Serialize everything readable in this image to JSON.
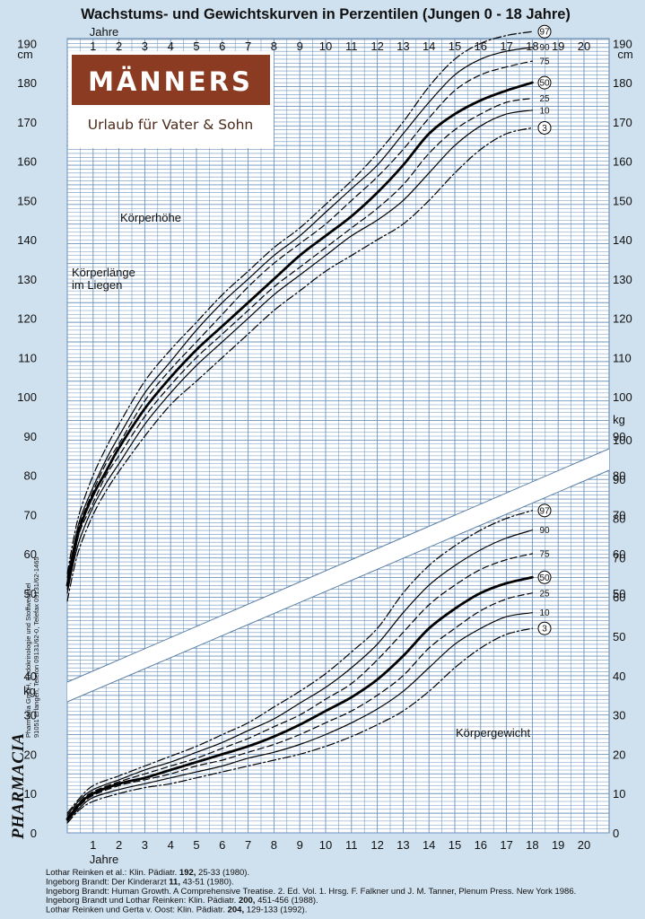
{
  "title": "Wachstums- und Gewichtskurven in Perzentilen (Jungen 0 - 18 Jahre)",
  "axes": {
    "age_label": "Jahre",
    "age_ticks": [
      "1",
      "2",
      "3",
      "4",
      "5",
      "6",
      "7",
      "8",
      "9",
      "10",
      "11",
      "12",
      "13",
      "14",
      "15",
      "16",
      "17",
      "18",
      "19",
      "20"
    ],
    "height_unit": "cm",
    "height_ticks": [
      "50",
      "60",
      "70",
      "80",
      "90",
      "100",
      "110",
      "120",
      "130",
      "140",
      "150",
      "160",
      "170",
      "180",
      "190"
    ],
    "weight_unit": "kg",
    "weight_ticks": [
      "0",
      "10",
      "20",
      "30",
      "40",
      "50",
      "60",
      "70",
      "80",
      "90",
      "100"
    ],
    "lower_left_ticks": [
      "0",
      "10",
      "20",
      "30",
      "40"
    ]
  },
  "labels": {
    "height": "Körperhöhe",
    "length_line1": "Körperlänge",
    "length_line2": "im Liegen",
    "weight": "Körpergewicht"
  },
  "logo": {
    "name": "MÄNNERS",
    "subtitle": "Urlaub für Vater & Sohn"
  },
  "sidebar": {
    "brand": "PHARMACIA",
    "line1": "Pharmacia GmbH, Endokrinologie und Stoffwechsel",
    "line2": "91051 Erlangen, Telefon 09131/62-0, Telefax 09131/62-1465"
  },
  "references": [
    {
      "pre": "Lothar Reinken et al.: Klin. Pädiatr. ",
      "bold": "192,",
      "post": " 25-33 (1980)."
    },
    {
      "pre": "Ingeborg Brandt: Der Kinderarzt ",
      "bold": "11,",
      "post": " 43-51 (1980)."
    },
    {
      "pre": "Ingeborg Brandt: Human Growth. A Comprehensive Treatise. 2. Ed. Vol. 1. Hrsg. F. Falkner und J. M. Tanner, Plenum Press. New York 1986.",
      "bold": "",
      "post": ""
    },
    {
      "pre": "Ingeborg Brandt und Lothar Reinken: Klin. Pädiatr. ",
      "bold": "200,",
      "post": " 451-456 (1988)."
    },
    {
      "pre": "Lothar Reinken und Gerta v. Oost: Klin. Pädiatr. ",
      "bold": "204,",
      "post": " 129-133 (1992)."
    }
  ],
  "chart_data": [
    {
      "type": "line",
      "title": "Körperhöhe",
      "xlabel": "Jahre",
      "ylabel": "cm",
      "xlim": [
        0,
        20
      ],
      "ylim": [
        50,
        190
      ],
      "grid": true,
      "series": [
        {
          "name": "97",
          "style": "dashdot",
          "x": [
            0,
            0.25,
            0.5,
            1,
            1.5,
            2,
            3,
            4,
            5,
            6,
            7,
            8,
            9,
            10,
            11,
            12,
            13,
            14,
            15,
            16,
            17,
            18
          ],
          "values": [
            55,
            64,
            71,
            80,
            87,
            93,
            104,
            112,
            119,
            126,
            132,
            138,
            143,
            149,
            155,
            162,
            170,
            179,
            186,
            190,
            192,
            193
          ]
        },
        {
          "name": "90",
          "style": "solid",
          "x": [
            0,
            0.25,
            0.5,
            1,
            1.5,
            2,
            3,
            4,
            5,
            6,
            7,
            8,
            9,
            10,
            11,
            12,
            13,
            14,
            15,
            16,
            17,
            18
          ],
          "values": [
            54,
            62,
            69,
            77,
            84,
            90,
            101,
            109,
            117,
            124,
            130,
            136,
            141,
            147,
            153,
            159,
            167,
            175,
            182,
            186,
            188,
            189
          ]
        },
        {
          "name": "75",
          "style": "dashed",
          "x": [
            0,
            0.25,
            0.5,
            1,
            1.5,
            2,
            3,
            4,
            5,
            6,
            7,
            8,
            9,
            10,
            11,
            12,
            13,
            14,
            15,
            16,
            17,
            18
          ],
          "values": [
            53,
            61,
            68,
            76,
            83,
            88,
            99,
            107,
            114,
            121,
            128,
            134,
            139,
            144,
            150,
            156,
            163,
            171,
            178,
            182,
            184,
            185.5
          ]
        },
        {
          "name": "50",
          "style": "bold",
          "x": [
            0,
            0.25,
            0.5,
            1,
            1.5,
            2,
            3,
            4,
            5,
            6,
            7,
            8,
            9,
            10,
            11,
            12,
            13,
            14,
            15,
            16,
            17,
            18
          ],
          "values": [
            52,
            60,
            67,
            75,
            81,
            87,
            97,
            105,
            112,
            118,
            124,
            130,
            136,
            141,
            146,
            152,
            159,
            167,
            172,
            175.5,
            178,
            180
          ]
        },
        {
          "name": "25",
          "style": "dashed",
          "x": [
            0,
            0.25,
            0.5,
            1,
            1.5,
            2,
            3,
            4,
            5,
            6,
            7,
            8,
            9,
            10,
            11,
            12,
            13,
            14,
            15,
            16,
            17,
            18
          ],
          "values": [
            51,
            59,
            66,
            73,
            80,
            85,
            95,
            103,
            110,
            116,
            122,
            128,
            133,
            138,
            143,
            148,
            154,
            162,
            168,
            172,
            175,
            176
          ]
        },
        {
          "name": "10",
          "style": "solid",
          "x": [
            0,
            0.25,
            0.5,
            1,
            1.5,
            2,
            3,
            4,
            5,
            6,
            7,
            8,
            9,
            10,
            11,
            12,
            13,
            14,
            15,
            16,
            17,
            18
          ],
          "values": [
            50,
            58,
            64,
            72,
            78,
            83,
            93,
            101,
            108,
            114,
            120,
            126,
            131,
            136,
            141,
            145,
            150,
            157,
            164,
            169,
            172,
            173
          ]
        },
        {
          "name": "3",
          "style": "dashdot",
          "x": [
            0,
            0.25,
            0.5,
            1,
            1.5,
            2,
            3,
            4,
            5,
            6,
            7,
            8,
            9,
            10,
            11,
            12,
            13,
            14,
            15,
            16,
            17,
            18
          ],
          "values": [
            48,
            56,
            62,
            70,
            76,
            81,
            90,
            98,
            104,
            110,
            116,
            122,
            127,
            132,
            136,
            140,
            144,
            150,
            157,
            163,
            167,
            168.5
          ]
        }
      ]
    },
    {
      "type": "line",
      "title": "Körpergewicht",
      "xlabel": "Jahre",
      "ylabel": "kg",
      "xlim": [
        0,
        20
      ],
      "ylim": [
        0,
        100
      ],
      "grid": true,
      "series": [
        {
          "name": "97",
          "style": "dashdot",
          "x": [
            0,
            0.5,
            1,
            2,
            3,
            4,
            5,
            6,
            7,
            8,
            9,
            10,
            11,
            12,
            13,
            14,
            15,
            16,
            17,
            18
          ],
          "values": [
            5,
            9,
            12,
            14.5,
            17,
            19.5,
            22,
            25,
            28,
            32,
            36,
            40.5,
            46,
            52,
            61,
            68,
            73,
            77,
            80,
            82
          ]
        },
        {
          "name": "90",
          "style": "solid",
          "x": [
            0,
            0.5,
            1,
            2,
            3,
            4,
            5,
            6,
            7,
            8,
            9,
            10,
            11,
            12,
            13,
            14,
            15,
            16,
            17,
            18
          ],
          "values": [
            4.5,
            8.5,
            11,
            13.5,
            16,
            18,
            20.5,
            23,
            26,
            29,
            33,
            37,
            42,
            48,
            56,
            63,
            68,
            72,
            75,
            77
          ]
        },
        {
          "name": "75",
          "style": "dashed",
          "x": [
            0,
            0.5,
            1,
            2,
            3,
            4,
            5,
            6,
            7,
            8,
            9,
            10,
            11,
            12,
            13,
            14,
            15,
            16,
            17,
            18
          ],
          "values": [
            4,
            8,
            10.5,
            13,
            15,
            17,
            19,
            21.5,
            24,
            27,
            30,
            34,
            38,
            44,
            51,
            58,
            63,
            67,
            69.5,
            71
          ]
        },
        {
          "name": "50",
          "style": "bold",
          "x": [
            0,
            0.5,
            1,
            2,
            3,
            4,
            5,
            6,
            7,
            8,
            9,
            10,
            11,
            12,
            13,
            14,
            15,
            16,
            17,
            18
          ],
          "values": [
            3.5,
            7.5,
            10,
            12.5,
            14,
            16,
            18,
            20,
            22,
            24.5,
            27.5,
            31,
            34.5,
            39,
            45,
            52,
            57,
            61,
            63.5,
            65
          ]
        },
        {
          "name": "25",
          "style": "dashed",
          "x": [
            0,
            0.5,
            1,
            2,
            3,
            4,
            5,
            6,
            7,
            8,
            9,
            10,
            11,
            12,
            13,
            14,
            15,
            16,
            17,
            18
          ],
          "values": [
            3.2,
            7,
            9.5,
            12,
            13.5,
            15,
            17,
            18.5,
            20.5,
            22.5,
            25,
            28,
            31,
            35,
            40,
            47,
            52,
            56.5,
            59.5,
            61
          ]
        },
        {
          "name": "10",
          "style": "solid",
          "x": [
            0,
            0.5,
            1,
            2,
            3,
            4,
            5,
            6,
            7,
            8,
            9,
            10,
            11,
            12,
            13,
            14,
            15,
            16,
            17,
            18
          ],
          "values": [
            3,
            6.5,
            9,
            11,
            12.5,
            14,
            15.5,
            17,
            19,
            20.5,
            22.5,
            25,
            28,
            31.5,
            36,
            42,
            48,
            52,
            55,
            56
          ]
        },
        {
          "name": "3",
          "style": "dashdot",
          "x": [
            0,
            0.5,
            1,
            2,
            3,
            4,
            5,
            6,
            7,
            8,
            9,
            10,
            11,
            12,
            13,
            14,
            15,
            16,
            17,
            18
          ],
          "values": [
            2.5,
            6,
            8,
            10,
            11.5,
            12.5,
            14,
            15.5,
            17,
            18.5,
            20,
            22,
            24.5,
            27.5,
            31,
            36,
            42,
            47,
            50.5,
            52
          ]
        }
      ]
    }
  ]
}
